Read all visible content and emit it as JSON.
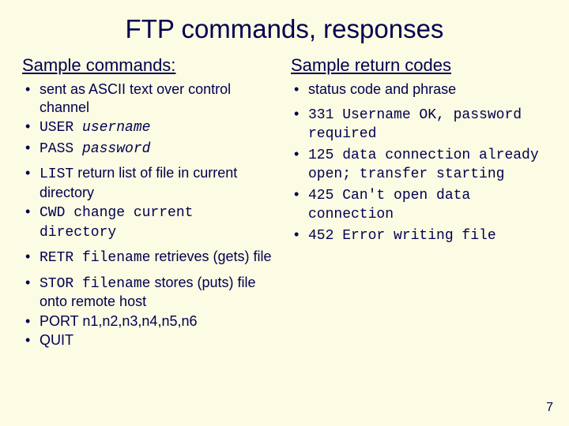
{
  "colors": {
    "background": "#fcfbe3",
    "text": "#000050"
  },
  "typography": {
    "body_font": "Comic Sans MS",
    "mono_font": "Courier New",
    "title_fontsize": 33,
    "subhead_fontsize": 22,
    "body_fontsize": 18,
    "pagenum_fontsize": 16
  },
  "title": "FTP commands, responses",
  "left": {
    "heading": "Sample commands:",
    "items": {
      "i0": "sent as ASCII text over control channel",
      "i1_cmd": "USER ",
      "i1_arg": "username",
      "i2_cmd": "PASS ",
      "i2_arg": "password",
      "i3_cmd": "LIST",
      "i3_rest": " return list of file in current directory",
      "i4_cmd": "CWD ",
      "i4_rest": "change current directory",
      "i5_cmd": "RETR filename",
      "i5_rest": " retrieves (gets) file",
      "i6_cmd": "STOR filename",
      "i6_rest": " stores (puts) file onto remote host",
      "i7": "PORT n1,n2,n3,n4,n5,n6",
      "i8": "QUIT"
    }
  },
  "right": {
    "heading": "Sample return codes",
    "items": {
      "r0": "status code and phrase",
      "r1": "331 Username OK, password required",
      "r2": "125 data connection already open; transfer starting",
      "r3": "425 Can't open data connection",
      "r4": "452 Error writing file"
    }
  },
  "page_number": "7"
}
